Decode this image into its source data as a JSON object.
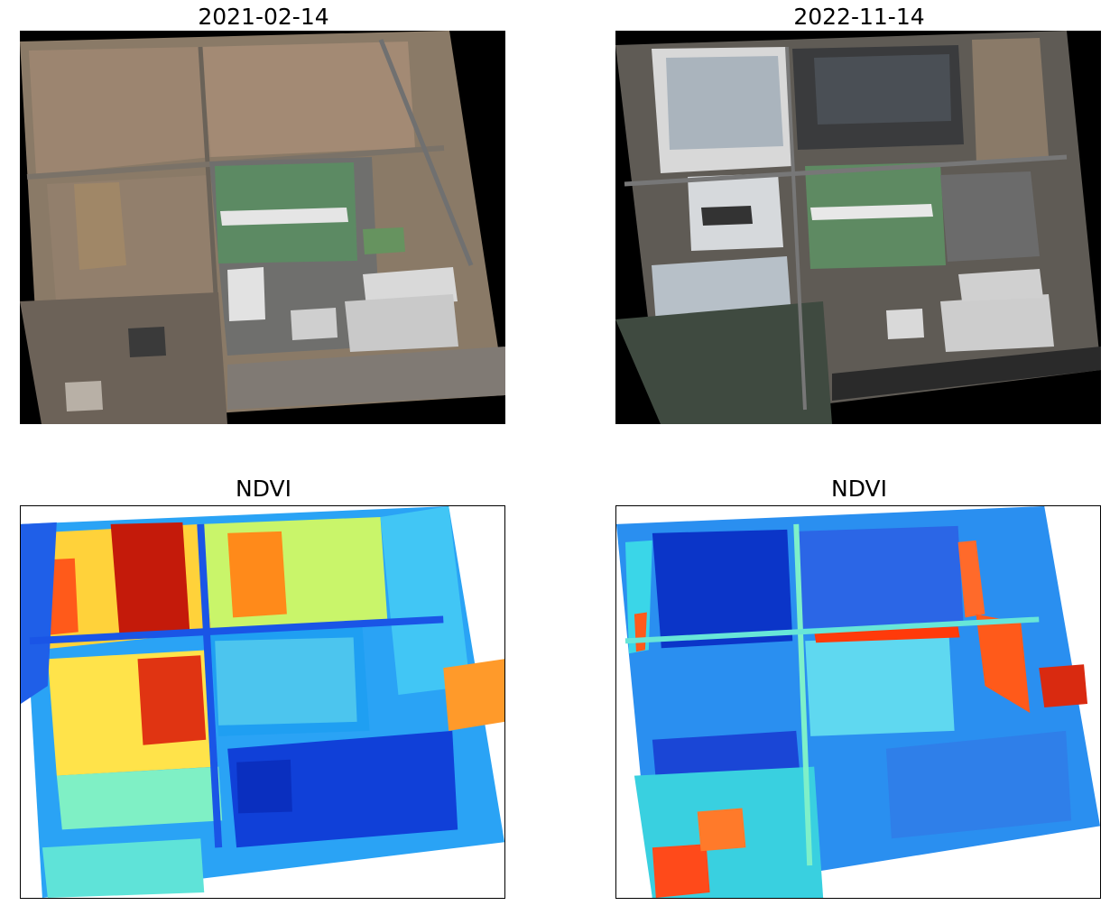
{
  "panels": [
    {
      "title": "2021-02-14",
      "kind": "satellite-rgb"
    },
    {
      "title": "2022-11-14",
      "kind": "satellite-rgb"
    },
    {
      "title": "NDVI",
      "kind": "ndvi-jet"
    },
    {
      "title": "NDVI",
      "kind": "ndvi-jet"
    }
  ],
  "colors": {
    "nodata_rgb": "#000000",
    "nodata_ndvi": "#ffffff"
  }
}
